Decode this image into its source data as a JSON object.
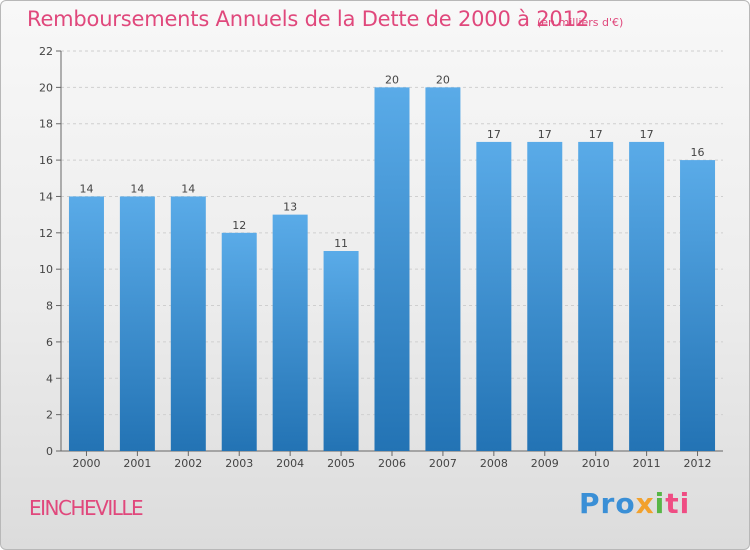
{
  "header": {
    "title": "Remboursements Annuels de la Dette de 2000 à 2012",
    "subtitle": "(en milliers d'€)"
  },
  "footer": {
    "commune": "EINCHEVILLE",
    "logo": {
      "p1": "Pro",
      "p2": "x",
      "p3": "i",
      "p4": "ti"
    }
  },
  "colors": {
    "title": "#e0487c",
    "bar_top": "#5aabe8",
    "bar_bottom": "#2373b4"
  },
  "chart_data": {
    "type": "bar",
    "title": "Remboursements Annuels de la Dette de 2000 à 2012",
    "categories": [
      "2000",
      "2001",
      "2002",
      "2003",
      "2004",
      "2005",
      "2006",
      "2007",
      "2008",
      "2009",
      "2010",
      "2011",
      "2012"
    ],
    "values": [
      14,
      14,
      14,
      12,
      13,
      11,
      20,
      20,
      17,
      17,
      17,
      17,
      16
    ],
    "data_labels": [
      "14",
      "14",
      "14",
      "12",
      "13",
      "11",
      "20",
      "20",
      "17",
      "17",
      "17",
      "17",
      "16"
    ],
    "ylim": [
      0,
      22
    ],
    "yticks": [
      "0",
      "2",
      "4",
      "6",
      "8",
      "10",
      "12",
      "14",
      "16",
      "18",
      "20",
      "22"
    ],
    "grid": true
  }
}
